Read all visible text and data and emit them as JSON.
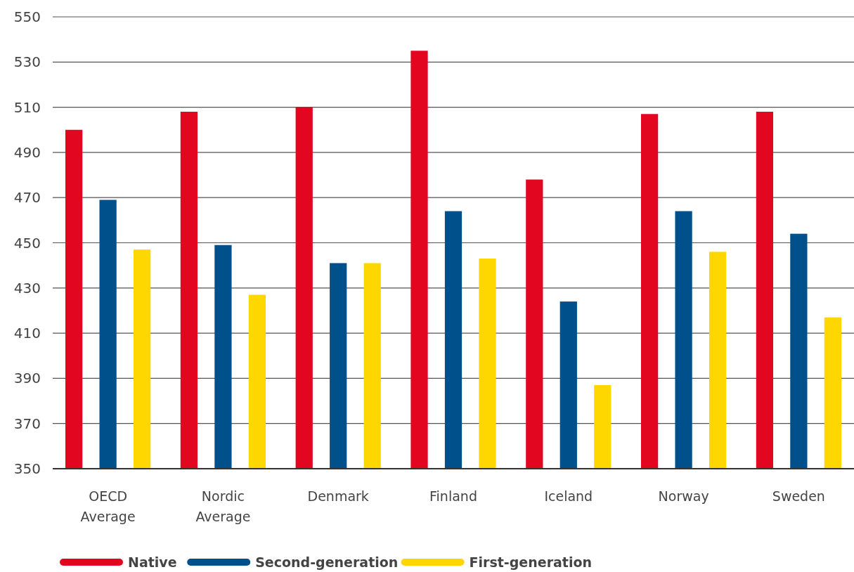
{
  "chart_data": {
    "type": "bar",
    "categories": [
      "OECD Average",
      "Nordic Average",
      "Denmark",
      "Finland",
      "Iceland",
      "Norway",
      "Sweden"
    ],
    "series": [
      {
        "name": "Native",
        "color": "#e30620",
        "values": [
          500,
          508,
          510,
          535,
          478,
          507,
          508
        ]
      },
      {
        "name": "Second-generation",
        "color": "#00508c",
        "values": [
          469,
          449,
          441,
          464,
          424,
          464,
          454
        ]
      },
      {
        "name": "First-generation",
        "color": "#ffd700",
        "values": [
          447,
          427,
          441,
          443,
          387,
          446,
          417
        ]
      }
    ],
    "ylim": [
      350,
      550
    ],
    "yticks": [
      350,
      370,
      390,
      410,
      430,
      450,
      470,
      490,
      510,
      530,
      550
    ],
    "grid": "y",
    "legend": "bottom"
  }
}
